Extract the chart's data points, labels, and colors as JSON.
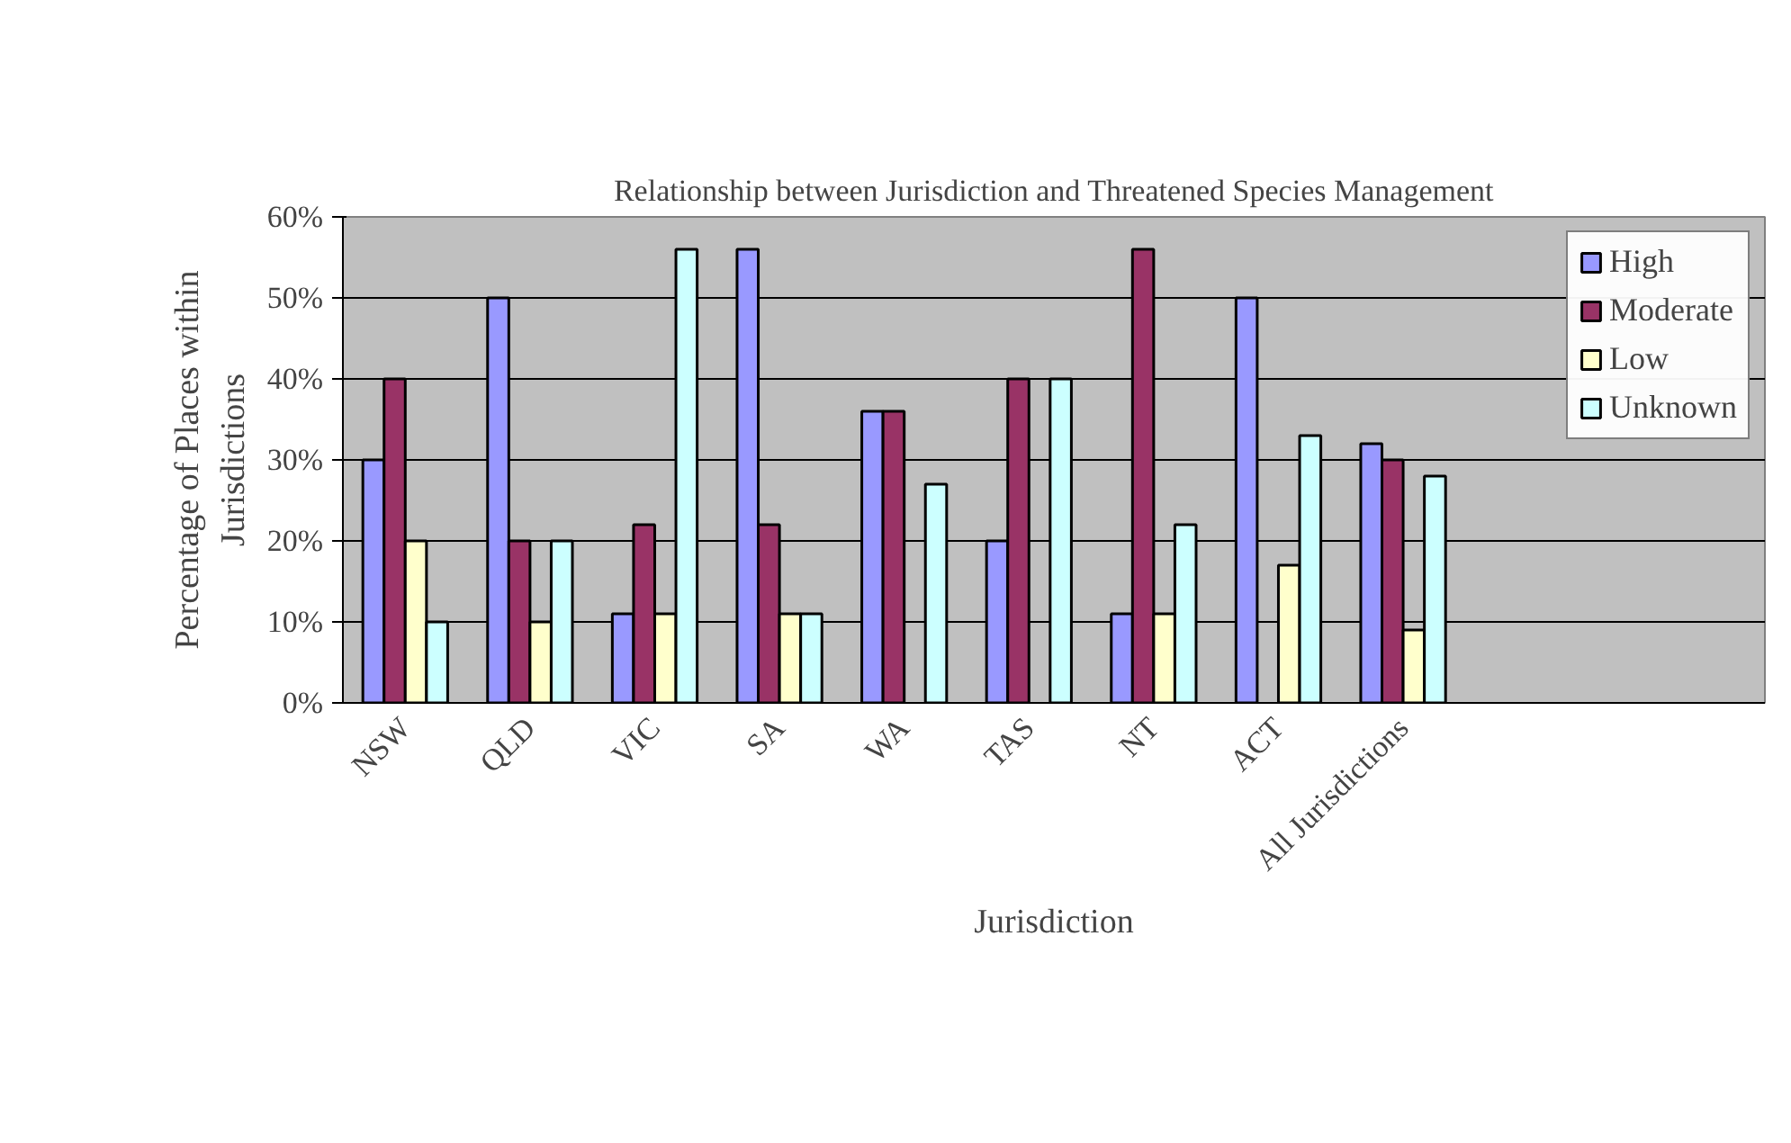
{
  "chart_data": {
    "type": "bar",
    "title": "Relationship between Jurisdiction and Threatened Species Management",
    "xlabel": "Jurisdiction",
    "ylabel": "Percentage of Places within\nJurisdictions",
    "categories": [
      "NSW",
      "QLD",
      "VIC",
      "SA",
      "WA",
      "TAS",
      "NT",
      "ACT",
      "All Jurisdictions"
    ],
    "series": [
      {
        "name": "High",
        "color": "#9999ff",
        "values": [
          30,
          50,
          11,
          56,
          36,
          20,
          11,
          50,
          32
        ]
      },
      {
        "name": "Moderate",
        "color": "#993366",
        "values": [
          40,
          20,
          22,
          22,
          36,
          40,
          56,
          0,
          30
        ]
      },
      {
        "name": "Low",
        "color": "#ffffcc",
        "values": [
          20,
          10,
          11,
          11,
          0,
          0,
          11,
          17,
          9
        ]
      },
      {
        "name": "Unknown",
        "color": "#ccffff",
        "values": [
          10,
          20,
          56,
          11,
          27,
          40,
          22,
          33,
          28
        ]
      }
    ],
    "ylim": [
      0,
      60
    ],
    "yticks": [
      {
        "value": 0,
        "label": "0%"
      },
      {
        "value": 10,
        "label": "10%"
      },
      {
        "value": 20,
        "label": "20%"
      },
      {
        "value": 30,
        "label": "30%"
      },
      {
        "value": 40,
        "label": "40%"
      },
      {
        "value": 50,
        "label": "50%"
      },
      {
        "value": 60,
        "label": "60%"
      }
    ],
    "grid": "y",
    "legend": "right"
  }
}
